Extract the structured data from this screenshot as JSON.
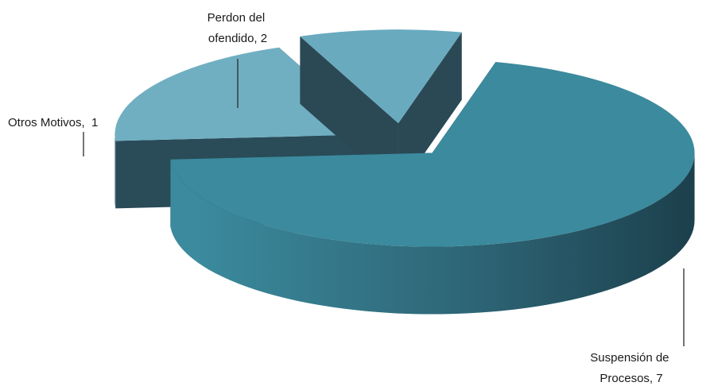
{
  "chart_data": {
    "type": "pie",
    "title": "",
    "categories": [
      "Suspensión de Procesos",
      "Perdon del ofendido",
      "Otros Motivos"
    ],
    "values": [
      7,
      2,
      1
    ],
    "data_labels": [
      [
        "Suspensión de",
        "Procesos, 7"
      ],
      [
        "Perdon del",
        "ofendido, 2"
      ],
      [
        "Otros Motivos,  1"
      ]
    ],
    "style": "3d-exploded",
    "legend": "none",
    "colors": {
      "top": [
        "#3b8a9d",
        "#70afc1",
        "#69aabf"
      ],
      "side_dark": [
        "#1b3d49",
        "#2a4b58",
        "#2b4955"
      ],
      "side_light": [
        "#3b8a9d",
        "#3e6877",
        "#3b6170"
      ]
    }
  }
}
